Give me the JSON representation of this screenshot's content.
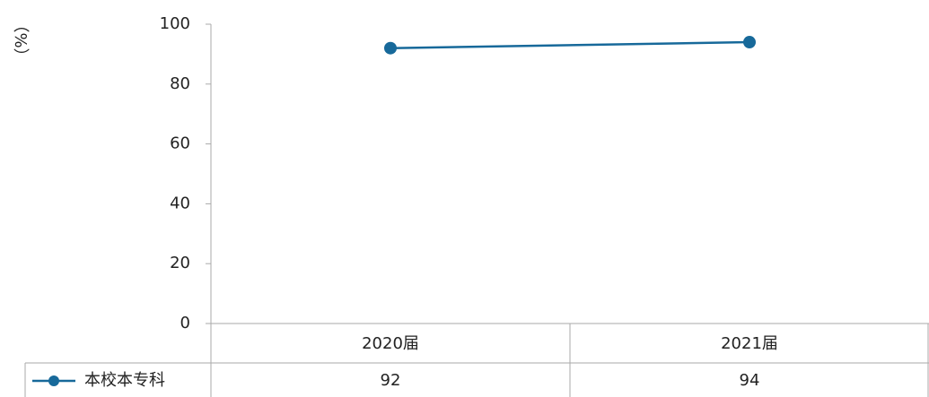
{
  "chart_data": {
    "type": "line",
    "y_label": "（%）",
    "categories": [
      "2020届",
      "2021届"
    ],
    "series": [
      {
        "name": "本校本专科",
        "color": "#17699a",
        "values": [
          92,
          94
        ]
      }
    ],
    "ylim": [
      0,
      100
    ],
    "yticks": [
      0,
      20,
      40,
      60,
      80,
      100
    ],
    "grid": false
  }
}
